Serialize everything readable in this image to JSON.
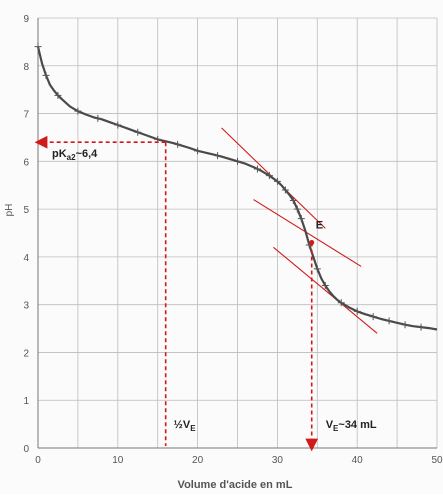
{
  "chart_data": {
    "type": "line",
    "title": "",
    "xlabel": "Volume d'acide en mL",
    "ylabel": "pH",
    "xlim": [
      0,
      50
    ],
    "ylim": [
      0,
      9
    ],
    "x_ticks": [
      0,
      10,
      20,
      30,
      40,
      50
    ],
    "y_ticks": [
      0,
      1,
      2,
      3,
      4,
      5,
      6,
      7,
      8,
      9
    ],
    "grid": true,
    "series": [
      {
        "x": [
          0,
          0.5,
          1.0,
          1.5,
          2.0,
          2.5,
          3.0,
          4.0,
          5.0,
          6.0,
          7.0,
          8.0,
          9.0,
          10.0,
          11.0,
          12.0,
          13.0,
          14.0,
          15.0,
          16.0,
          17.0,
          18.0,
          19.0,
          20.0,
          21.0,
          22.0,
          23.0,
          24.0,
          25.0,
          26.0,
          27.0,
          28.0,
          29.0,
          30.0,
          30.5,
          31.0,
          31.5,
          32.0,
          32.5,
          33.0,
          33.5,
          34.0,
          34.5,
          35.0,
          35.5,
          36.0,
          36.5,
          37.0,
          37.5,
          38.0,
          38.5,
          39.0,
          40.0,
          41.0,
          42.0,
          43.0,
          44.0,
          45.0,
          46.0,
          47.0,
          48.0,
          49.0,
          50.0
        ],
        "y": [
          8.4,
          8.05,
          7.8,
          7.6,
          7.48,
          7.38,
          7.3,
          7.15,
          7.05,
          6.98,
          6.92,
          6.88,
          6.82,
          6.76,
          6.7,
          6.64,
          6.58,
          6.52,
          6.46,
          6.42,
          6.38,
          6.33,
          6.28,
          6.22,
          6.18,
          6.14,
          6.1,
          6.05,
          6.0,
          5.95,
          5.88,
          5.8,
          5.7,
          5.58,
          5.5,
          5.4,
          5.3,
          5.18,
          5.0,
          4.8,
          4.55,
          4.25,
          4.0,
          3.75,
          3.55,
          3.4,
          3.28,
          3.18,
          3.1,
          3.04,
          2.99,
          2.94,
          2.86,
          2.8,
          2.75,
          2.7,
          2.66,
          2.62,
          2.58,
          2.55,
          2.53,
          2.51,
          2.48
        ],
        "markers_x": [
          0,
          1,
          2.5,
          5,
          7.5,
          10,
          12.5,
          15,
          17.5,
          20,
          22.5,
          25,
          27.5,
          29,
          30,
          31,
          32,
          32.5,
          33,
          34,
          35,
          36,
          38,
          40,
          42,
          44,
          46,
          48
        ]
      }
    ],
    "annotations": {
      "half_equivalence": {
        "x": 16,
        "y": 6.4,
        "label": "½V",
        "label_sub": "E"
      },
      "pka": {
        "y": 6.4,
        "label_pre": "pK",
        "label_sub": "a2",
        "label_post": "~6,4"
      },
      "equivalence_point": {
        "x": 34.3,
        "y": 4.3,
        "label": "E"
      },
      "equivalence_volume": {
        "x": 34.3,
        "label_pre": "V",
        "label_sub": "E",
        "label_post": "~34 mL"
      },
      "tangent_lines": [
        {
          "x": [
            23,
            36
          ],
          "y": [
            6.7,
            4.6
          ]
        },
        {
          "x": [
            27,
            40.5
          ],
          "y": [
            5.2,
            3.8
          ]
        },
        {
          "x": [
            29.5,
            42.5
          ],
          "y": [
            4.2,
            2.4
          ]
        }
      ]
    },
    "colors": {
      "curve": "#4a4a4a",
      "annotation": "#d11a1a",
      "grid": "#bdbdbd",
      "axis_text": "#555555"
    }
  }
}
